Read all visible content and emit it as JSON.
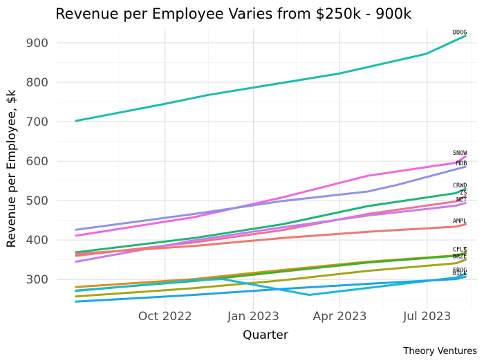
{
  "chart_data": {
    "type": "line",
    "title": "Revenue per Employee Varies from $250k - 900k",
    "xlabel": "Quarter",
    "ylabel": "Revenue per Employee, $k",
    "caption": "Theory Ventures",
    "x_ticks": [
      "Oct 2022",
      "Jan 2023",
      "Apr 2023",
      "Jul 2023"
    ],
    "y_ticks": [
      300,
      400,
      500,
      600,
      700,
      800,
      900
    ],
    "xlim": [
      "2022-06-10",
      "2023-08-22"
    ],
    "ylim": [
      225,
      935
    ],
    "grid": true,
    "legend": "none (labels at line ends)",
    "series": [
      {
        "name": "DDOG",
        "color": "#17BEAE",
        "points": [
          [
            "2022-06-30",
            702
          ],
          [
            "2022-09-30",
            745
          ],
          [
            "2022-11-15",
            768
          ],
          [
            "2023-03-31",
            822
          ],
          [
            "2023-06-30",
            872
          ],
          [
            "2023-08-10",
            918
          ]
        ]
      },
      {
        "name": "SNOW",
        "color": "#F067E0",
        "points": [
          [
            "2022-06-30",
            411
          ],
          [
            "2022-10-31",
            458
          ],
          [
            "2023-01-31",
            508
          ],
          [
            "2023-04-30",
            563
          ],
          [
            "2023-07-31",
            596
          ],
          [
            "2023-08-10",
            612
          ]
        ]
      },
      {
        "name": "MDB",
        "color": "#8F91EB",
        "points": [
          [
            "2022-06-30",
            426
          ],
          [
            "2022-10-31",
            466
          ],
          [
            "2023-01-31",
            499
          ],
          [
            "2023-04-30",
            523
          ],
          [
            "2023-05-31",
            540
          ],
          [
            "2023-08-10",
            586
          ]
        ]
      },
      {
        "name": "CRWD",
        "color": "#1BB674",
        "points": [
          [
            "2022-06-30",
            369
          ],
          [
            "2022-10-31",
            405
          ],
          [
            "2023-01-31",
            440
          ],
          [
            "2023-04-30",
            486
          ],
          [
            "2023-07-31",
            519
          ],
          [
            "2023-08-10",
            530
          ]
        ]
      },
      {
        "name": "ZS",
        "color": "#F36F98",
        "points": [
          [
            "2022-06-30",
            360
          ],
          [
            "2022-10-31",
            394
          ],
          [
            "2023-01-31",
            425
          ],
          [
            "2023-04-30",
            466
          ],
          [
            "2023-07-31",
            498
          ],
          [
            "2023-08-10",
            512
          ]
        ]
      },
      {
        "name": "NET",
        "color": "#C87BF1",
        "points": [
          [
            "2022-06-30",
            345
          ],
          [
            "2022-10-31",
            399
          ],
          [
            "2023-01-31",
            432
          ],
          [
            "2023-04-30",
            462
          ],
          [
            "2023-07-31",
            487
          ],
          [
            "2023-08-10",
            494
          ]
        ]
      },
      {
        "name": "AMPL",
        "color": "#EF776D",
        "points": [
          [
            "2022-06-30",
            365
          ],
          [
            "2022-10-31",
            385
          ],
          [
            "2023-01-31",
            405
          ],
          [
            "2023-04-30",
            421
          ],
          [
            "2023-07-31",
            434
          ],
          [
            "2023-08-10",
            440
          ]
        ]
      },
      {
        "name": "CFLT",
        "color": "#D39117",
        "points": [
          [
            "2022-06-30",
            281
          ],
          [
            "2022-10-31",
            301
          ],
          [
            "2023-01-31",
            324
          ],
          [
            "2023-04-30",
            345
          ],
          [
            "2023-07-31",
            361
          ],
          [
            "2023-08-10",
            368
          ]
        ]
      },
      {
        "name": "S",
        "color": "#42AF2C",
        "points": [
          [
            "2022-06-30",
            272
          ],
          [
            "2022-10-31",
            296
          ],
          [
            "2023-01-31",
            320
          ],
          [
            "2023-04-30",
            343
          ],
          [
            "2023-07-31",
            360
          ],
          [
            "2023-08-10",
            366
          ]
        ]
      },
      {
        "name": "BRZE",
        "color": "#A3A614",
        "points": [
          [
            "2022-06-30",
            257
          ],
          [
            "2022-10-31",
            278
          ],
          [
            "2023-01-31",
            298
          ],
          [
            "2023-04-30",
            322
          ],
          [
            "2023-07-31",
            341
          ],
          [
            "2023-08-10",
            350
          ]
        ]
      },
      {
        "name": "FROG",
        "color": "#1CB8D6",
        "points": [
          [
            "2022-06-30",
            271
          ],
          [
            "2022-10-31",
            298
          ],
          [
            "2022-11-30",
            301
          ],
          [
            "2023-02-28",
            261
          ],
          [
            "2023-07-31",
            305
          ],
          [
            "2023-08-10",
            315
          ]
        ]
      },
      {
        "name": "BILL",
        "color": "#1AA6E8",
        "points": [
          [
            "2022-06-30",
            244
          ],
          [
            "2022-10-31",
            261
          ],
          [
            "2023-01-31",
            276
          ],
          [
            "2023-04-30",
            289
          ],
          [
            "2023-07-31",
            301
          ],
          [
            "2023-08-10",
            307
          ]
        ]
      }
    ],
    "end_labels": [
      {
        "series": "DDOG",
        "text": "DDOG"
      },
      {
        "series": "SNOW",
        "text": "SNOW"
      },
      {
        "series": "MDB",
        "text": "MDB"
      },
      {
        "series": "CRWD",
        "text": "CRWD"
      },
      {
        "series": "ZS",
        "text": "ZS"
      },
      {
        "series": "NET",
        "text": "NET"
      },
      {
        "series": "AMPL",
        "text": "AMPL"
      },
      {
        "series": "CFLT",
        "text": "CFLT"
      },
      {
        "series": "S",
        "text": "S"
      },
      {
        "series": "BRZE",
        "text": "BRZE"
      },
      {
        "series": "FROG",
        "text": "FROG"
      },
      {
        "series": "BILL",
        "text": "BILL"
      }
    ]
  }
}
